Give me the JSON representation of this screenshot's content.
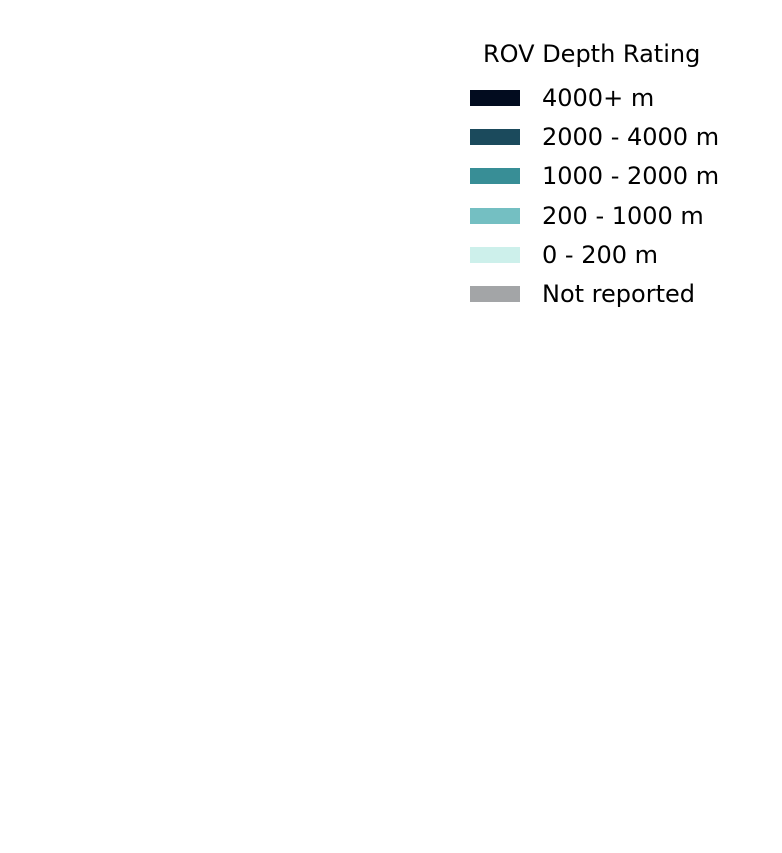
{
  "chart_data": {
    "type": "legend",
    "title": "ROV Depth Rating",
    "legend": {
      "title": "ROV Depth Rating",
      "placement": "top-right",
      "entries": [
        {
          "label": "4000+ m",
          "color": "#020c1f"
        },
        {
          "label": "2000 - 4000 m",
          "color": "#1b4a5c"
        },
        {
          "label": "1000 - 2000 m",
          "color": "#388e96"
        },
        {
          "label": "200 - 1000 m",
          "color": "#74bfc2"
        },
        {
          "label": "0 - 200 m",
          "color": "#cdf0eb"
        },
        {
          "label": "Not reported",
          "color": "#a3a5a7"
        }
      ]
    }
  }
}
